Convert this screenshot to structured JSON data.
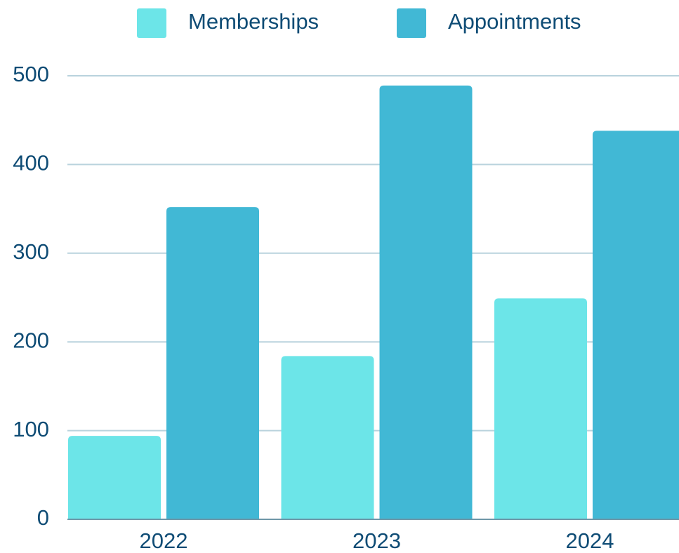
{
  "chart_data": {
    "type": "bar",
    "categories": [
      "2022",
      "2023",
      "2024"
    ],
    "series": [
      {
        "name": "Memberships",
        "color": "#6ce5e8",
        "values": [
          94,
          184,
          249
        ]
      },
      {
        "name": "Appointments",
        "color": "#41b8d5",
        "values": [
          352,
          489,
          438
        ]
      }
    ],
    "ylim": [
      0,
      500
    ],
    "yticks": [
      0,
      100,
      200,
      300,
      400,
      500
    ],
    "grid": true,
    "legend": "top"
  }
}
